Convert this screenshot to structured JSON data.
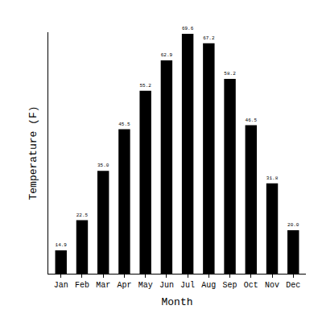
{
  "chart_data": {
    "type": "bar",
    "x_label": "Month",
    "y_label": "Temperature (F)",
    "categories": [
      "Jan",
      "Feb",
      "Mar",
      "Apr",
      "May",
      "Jun",
      "Jul",
      "Aug",
      "Sep",
      "Oct",
      "Nov",
      "Dec"
    ],
    "values": [
      14.9,
      22.5,
      35.0,
      45.5,
      55.2,
      62.9,
      69.6,
      67.2,
      58.2,
      46.5,
      31.8,
      20.0
    ],
    "value_labels": [
      "14.9",
      "22.5",
      "35.0",
      "45.5",
      "55.2",
      "62.9",
      "69.6",
      "67.2",
      "58.2",
      "46.5",
      "31.8",
      "20.0"
    ],
    "color": "#000000",
    "ylim": [
      9,
      70
    ],
    "yticks": [],
    "grid": false,
    "data_labels": true,
    "tick_labels": "x"
  }
}
